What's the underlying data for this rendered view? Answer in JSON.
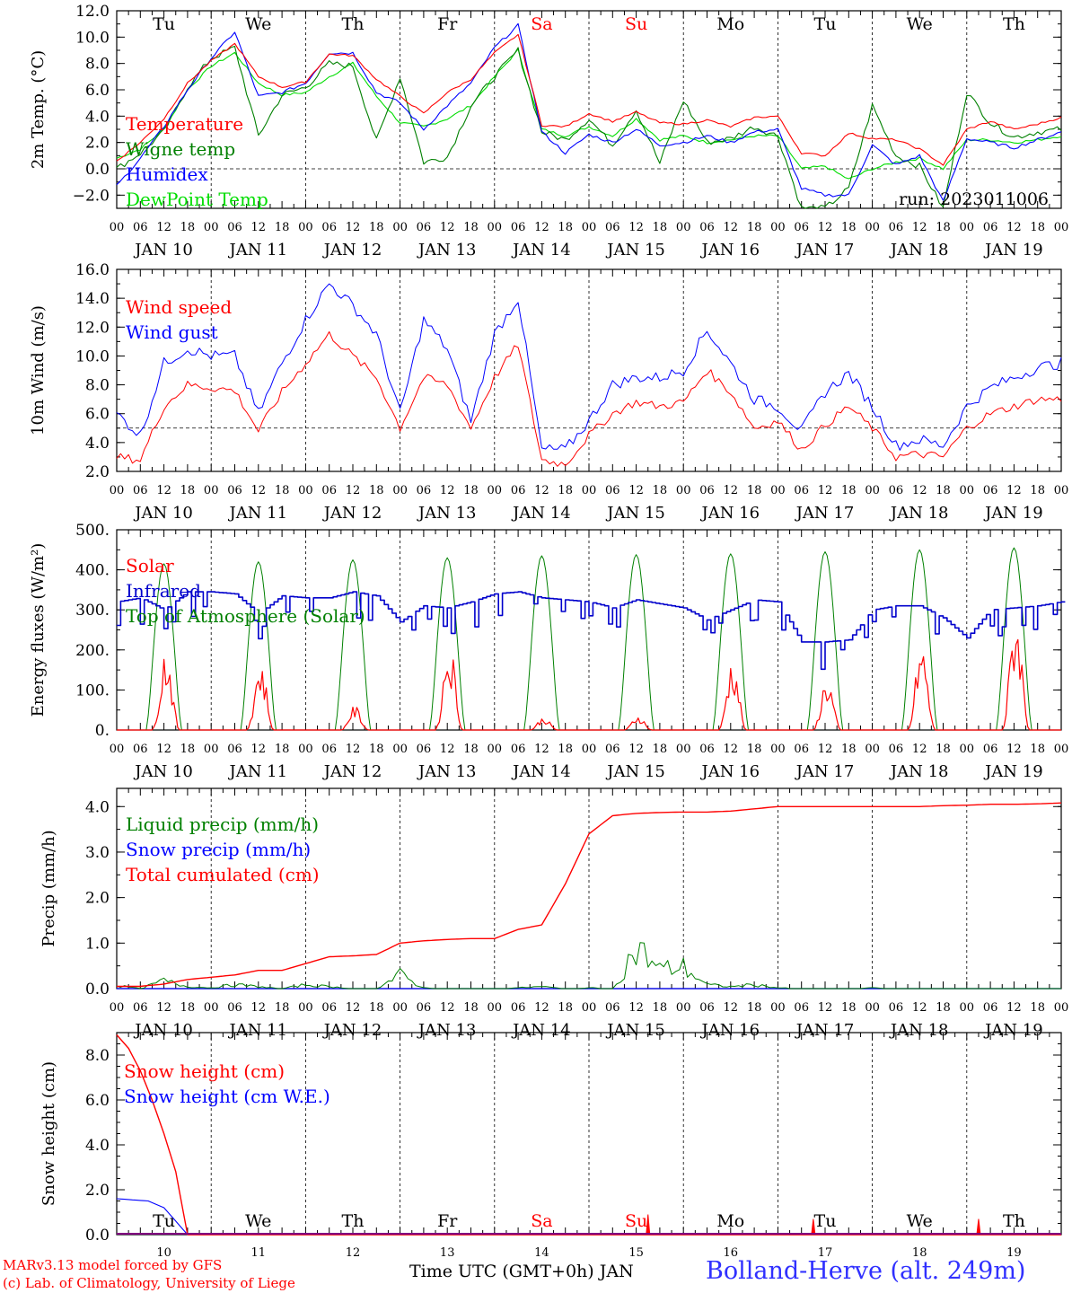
{
  "meteogram": {
    "days": [
      "Tu",
      "We",
      "Th",
      "Fr",
      "Sa",
      "Su",
      "Mo",
      "Tu",
      "We",
      "Th"
    ],
    "weekend_days": [
      "Sa",
      "Su"
    ],
    "date_labels": [
      "JAN 10",
      "JAN 11",
      "JAN 12",
      "JAN 13",
      "JAN 14",
      "JAN 15",
      "JAN 16",
      "JAN 17",
      "JAN 18",
      "JAN 19"
    ],
    "hour_ticks": [
      "00",
      "06",
      "12",
      "18"
    ],
    "day_numbers": [
      "10",
      "11",
      "12",
      "13",
      "14",
      "15",
      "16",
      "17",
      "18",
      "19"
    ],
    "run_label": "run: 2023011006",
    "footer": {
      "model": "MARv3.13 model forced by GFS",
      "credit": "(c) Lab. of Climatology, University of Liege",
      "xlabel": "Time UTC (GMT+0h) JAN",
      "station": "Bolland-Herve (alt. 249m)"
    }
  },
  "chart_data": [
    {
      "type": "line",
      "ylabel": "2m Temp. (°C)",
      "ylim": [
        -3.0,
        12.0
      ],
      "yticks": [
        "12.0",
        "10.0",
        "8.0",
        "6.0",
        "4.0",
        "2.0",
        "0.0",
        "−2.0"
      ],
      "ref_line": 0.0,
      "x_hours": [
        0,
        6,
        12,
        18,
        24,
        30,
        36,
        42,
        48,
        54,
        60,
        66,
        72,
        78,
        84,
        90,
        96,
        102,
        108,
        114,
        120,
        126,
        132,
        138,
        144,
        150,
        156,
        162,
        168,
        174,
        180,
        186,
        192,
        198,
        204,
        210,
        216,
        222,
        228,
        234,
        240
      ],
      "series": [
        {
          "name": "Temperature",
          "color": "#ff0000",
          "values": [
            0.6,
            2.0,
            3.8,
            6.5,
            8.2,
            9.5,
            7.0,
            6.2,
            6.6,
            8.7,
            8.6,
            6.8,
            5.5,
            4.2,
            5.8,
            6.8,
            8.8,
            10.2,
            3.3,
            3.2,
            4.2,
            3.6,
            4.3,
            3.5,
            3.4,
            3.7,
            3.2,
            3.9,
            4.0,
            1.2,
            1.0,
            2.7,
            2.3,
            2.2,
            1.5,
            0.3,
            3.0,
            3.6,
            3.0,
            3.4,
            3.9
          ]
        },
        {
          "name": "Wigne temp",
          "color": "#008000",
          "values": [
            0.0,
            1.2,
            2.8,
            6.2,
            8.4,
            9.2,
            2.5,
            5.6,
            6.2,
            8.0,
            7.8,
            2.1,
            7.0,
            0.5,
            0.9,
            4.8,
            7.0,
            9.0,
            2.8,
            2.2,
            3.8,
            1.8,
            4.5,
            0.4,
            5.2,
            2.0,
            2.3,
            3.2,
            2.5,
            -3.0,
            -3.0,
            -1.5,
            4.8,
            1.0,
            0.2,
            -3.0,
            5.8,
            3.5,
            2.4,
            2.8,
            3.0
          ]
        },
        {
          "name": "Humidex",
          "color": "#0000ff",
          "values": [
            -1.3,
            0.8,
            3.2,
            6.0,
            8.4,
            10.4,
            5.5,
            5.8,
            6.5,
            8.8,
            8.8,
            5.8,
            5.0,
            3.0,
            4.8,
            6.5,
            9.2,
            10.9,
            2.8,
            1.2,
            2.6,
            2.0,
            3.0,
            1.8,
            2.0,
            2.5,
            2.0,
            2.8,
            3.0,
            -1.5,
            -2.0,
            -2.0,
            1.8,
            0.3,
            1.0,
            -2.5,
            2.3,
            2.0,
            1.6,
            2.2,
            2.8
          ]
        },
        {
          "name": "DewPoint Temp",
          "color": "#00dd00",
          "values": [
            0.8,
            1.5,
            3.0,
            6.0,
            7.8,
            8.8,
            6.5,
            5.6,
            5.8,
            7.0,
            8.0,
            5.5,
            3.5,
            3.2,
            3.8,
            4.8,
            7.0,
            9.0,
            3.0,
            2.5,
            3.2,
            2.5,
            3.8,
            2.2,
            2.5,
            2.0,
            2.2,
            2.5,
            2.5,
            0.0,
            0.2,
            -0.8,
            0.0,
            0.5,
            0.8,
            0.0,
            2.2,
            2.2,
            2.0,
            2.2,
            2.5
          ]
        }
      ]
    },
    {
      "type": "line",
      "ylabel": "10m Wind (m/s)",
      "ylim": [
        2.0,
        16.0
      ],
      "yticks": [
        "16.0",
        "14.0",
        "12.0",
        "10.0",
        "8.0",
        "6.0",
        "4.0",
        "2.0"
      ],
      "ref_line": 5.0,
      "x_hours": [
        0,
        6,
        12,
        18,
        24,
        30,
        36,
        42,
        48,
        54,
        60,
        66,
        72,
        78,
        84,
        90,
        96,
        102,
        108,
        114,
        120,
        126,
        132,
        138,
        144,
        150,
        156,
        162,
        168,
        174,
        180,
        186,
        192,
        198,
        204,
        210,
        216,
        222,
        228,
        234,
        240
      ],
      "series": [
        {
          "name": "Wind speed",
          "color": "#ff0000",
          "values": [
            3.0,
            2.8,
            6.5,
            8.0,
            7.8,
            7.6,
            4.8,
            7.5,
            9.5,
            11.5,
            10.0,
            8.5,
            5.0,
            8.5,
            8.0,
            5.0,
            8.5,
            10.8,
            2.8,
            2.5,
            4.5,
            6.0,
            6.8,
            6.5,
            6.8,
            9.0,
            7.5,
            5.0,
            5.5,
            3.5,
            5.2,
            6.5,
            5.0,
            3.0,
            3.2,
            3.0,
            5.0,
            6.0,
            6.5,
            7.0,
            7.0
          ]
        },
        {
          "name": "Wind gust",
          "color": "#0000ff",
          "values": [
            6.0,
            4.5,
            9.5,
            10.5,
            10.0,
            10.0,
            6.0,
            9.5,
            12.5,
            15.0,
            13.5,
            11.5,
            6.0,
            12.5,
            10.5,
            5.5,
            11.5,
            14.0,
            3.5,
            3.5,
            5.5,
            8.0,
            8.5,
            8.5,
            9.0,
            11.8,
            9.5,
            7.0,
            6.5,
            4.8,
            7.5,
            8.8,
            6.5,
            3.8,
            4.2,
            3.8,
            6.5,
            7.8,
            8.5,
            9.2,
            9.5
          ]
        }
      ]
    },
    {
      "type": "line",
      "ylabel": "Energy fluxes (W/m²)",
      "ylim": [
        0,
        500
      ],
      "yticks": [
        "500.",
        "400.",
        "300.",
        "200.",
        "100.",
        "0."
      ],
      "x_hours": [
        0,
        6,
        12,
        18,
        24,
        30,
        36,
        42,
        48,
        54,
        60,
        66,
        72,
        78,
        84,
        90,
        96,
        102,
        108,
        114,
        120,
        126,
        132,
        138,
        144,
        150,
        156,
        162,
        168,
        174,
        180,
        186,
        192,
        198,
        204,
        210,
        216,
        222,
        228,
        234,
        240
      ],
      "series": [
        {
          "name": "Solar",
          "color": "#ff0000",
          "peaks": [
            195,
            165,
            55,
            210,
            30,
            35,
            170,
            125,
            200,
            280
          ],
          "peak_hour": 12.5
        },
        {
          "name": "Infrared",
          "color": "#0000cc",
          "values": [
            320,
            330,
            300,
            345,
            345,
            340,
            290,
            335,
            330,
            330,
            345,
            335,
            270,
            310,
            305,
            320,
            340,
            345,
            330,
            325,
            320,
            305,
            325,
            315,
            305,
            275,
            300,
            325,
            320,
            220,
            220,
            225,
            300,
            310,
            310,
            280,
            230,
            300,
            305,
            310,
            320
          ]
        },
        {
          "name": "Top of Atmosphere (Solar)",
          "color": "#008000",
          "peaks": [
            415,
            420,
            425,
            430,
            435,
            438,
            440,
            445,
            450,
            455
          ],
          "peak_hour": 12.0
        }
      ]
    },
    {
      "type": "line",
      "ylabel": "Precip (mm/h)",
      "ylim": [
        0.0,
        4.4
      ],
      "yticks": [
        "4.0",
        "3.0",
        "2.0",
        "1.0",
        "0.0"
      ],
      "x_hours": [
        0,
        6,
        12,
        18,
        24,
        30,
        36,
        42,
        48,
        54,
        60,
        66,
        72,
        78,
        84,
        90,
        96,
        102,
        108,
        114,
        120,
        126,
        132,
        138,
        144,
        150,
        156,
        162,
        168,
        174,
        180,
        186,
        192,
        198,
        204,
        210,
        216,
        222,
        228,
        234,
        240
      ],
      "series": [
        {
          "name": "Liquid precip (mm/h)",
          "color": "#008000",
          "values": [
            0.08,
            0.0,
            0.2,
            0.05,
            0.02,
            0.1,
            0.05,
            0.0,
            0.1,
            0.05,
            0.0,
            0.0,
            0.35,
            0.02,
            0.0,
            0.0,
            0.0,
            0.02,
            0.05,
            0.0,
            0.02,
            0.0,
            1.05,
            0.5,
            0.55,
            0.1,
            0.05,
            0.1,
            0.02,
            0.0,
            0.0,
            0.0,
            0.02,
            0.0,
            0.0,
            0.0,
            0.0,
            0.0,
            0.0,
            0.0,
            0.0
          ]
        },
        {
          "name": "Snow precip (mm/h)",
          "color": "#0000ff",
          "values": [
            0,
            0,
            0,
            0,
            0,
            0,
            0,
            0,
            0,
            0,
            0,
            0,
            0,
            0,
            0,
            0,
            0,
            0,
            0,
            0,
            0,
            0,
            0,
            0,
            0,
            0,
            0,
            0,
            0,
            0,
            0,
            0,
            0,
            0,
            0,
            0,
            0,
            0,
            0,
            0,
            0
          ]
        },
        {
          "name": "Total cumulated (cm)",
          "color": "#ff0000",
          "values": [
            0.05,
            0.05,
            0.1,
            0.2,
            0.25,
            0.3,
            0.4,
            0.4,
            0.55,
            0.7,
            0.72,
            0.75,
            1.0,
            1.05,
            1.08,
            1.1,
            1.1,
            1.3,
            1.4,
            2.3,
            3.4,
            3.8,
            3.85,
            3.87,
            3.88,
            3.88,
            3.9,
            3.95,
            4.0,
            4.0,
            4.0,
            4.0,
            4.0,
            4.0,
            4.0,
            4.02,
            4.03,
            4.05,
            4.05,
            4.06,
            4.08
          ]
        }
      ]
    },
    {
      "type": "line",
      "ylabel": "Snow height (cm)",
      "ylim": [
        0.0,
        9.0
      ],
      "yticks": [
        "8.0",
        "6.0",
        "4.0",
        "2.0",
        "0.0"
      ],
      "series": [
        {
          "name": "Snow height (cm)",
          "color": "#ff0000",
          "x_hours": [
            0,
            3,
            6,
            9,
            12,
            15,
            18,
            240
          ],
          "values": [
            8.9,
            8.3,
            7.3,
            6.0,
            4.5,
            2.8,
            0.0,
            0.0
          ]
        },
        {
          "name": "Snow height (cm W.E.)",
          "color": "#0000ff",
          "x_hours": [
            0,
            4,
            8,
            12,
            15,
            18,
            240
          ],
          "values": [
            1.6,
            1.55,
            1.5,
            1.2,
            0.6,
            0.0,
            0.0
          ]
        }
      ],
      "spikes_hours": [
        135,
        177,
        219
      ],
      "spikes_values": [
        0.9,
        0.7,
        0.7
      ]
    }
  ]
}
